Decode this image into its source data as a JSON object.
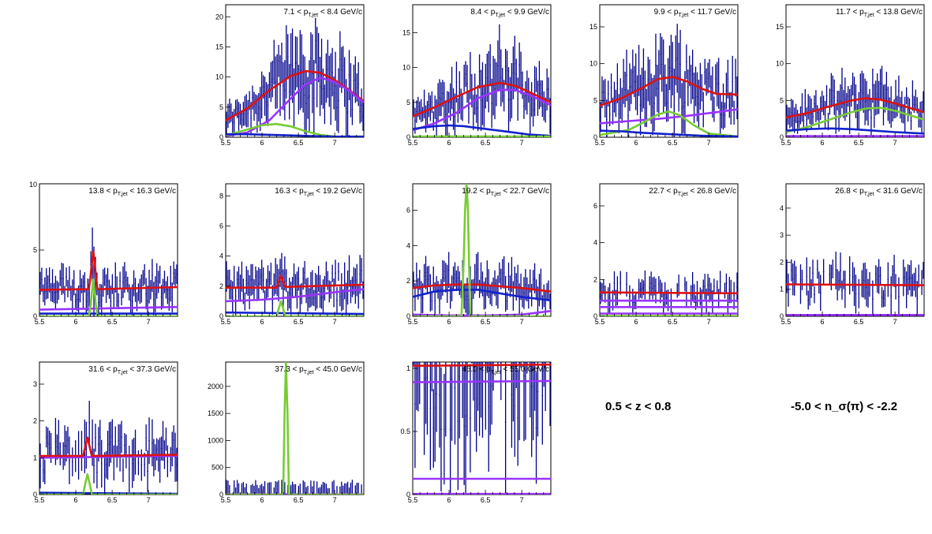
{
  "labels": {
    "z_range": "0.5 < z < 0.8",
    "nsigma_range": "-5.0 < n_σ(π) < -2.2"
  },
  "colors": {
    "data": "#00008b",
    "red": "#dd1111",
    "violet": "#9933ff",
    "green": "#77cc33",
    "blue": "#1122cc"
  },
  "chart_data": [
    {
      "type": "line",
      "title": "7.1 < p_T,jet < 8.4 GeV/c",
      "title_lo": "7.1",
      "title_hi": "8.4",
      "xlim": [
        5.5,
        7.4
      ],
      "ylim": [
        0,
        22
      ],
      "xticks": [
        5.5,
        6,
        6.5,
        7
      ],
      "yticks": [
        0,
        5,
        10,
        15,
        20
      ],
      "series": [
        {
          "color": "red",
          "x": [
            5.5,
            5.8,
            6.1,
            6.4,
            6.6,
            6.8,
            7.0,
            7.2,
            7.4
          ],
          "y": [
            2.8,
            4.8,
            7.8,
            10.2,
            11.0,
            10.7,
            9.5,
            7.8,
            6.0
          ]
        },
        {
          "color": "violet",
          "x": [
            5.5,
            5.8,
            6.1,
            6.4,
            6.6,
            6.8,
            7.0,
            7.2,
            7.4
          ],
          "y": [
            0.2,
            0.8,
            2.8,
            6.5,
            8.8,
            9.9,
            9.2,
            7.7,
            5.8
          ]
        },
        {
          "color": "green",
          "x": [
            5.5,
            5.8,
            6.0,
            6.2,
            6.4,
            6.6,
            6.8,
            7.0,
            7.4
          ],
          "y": [
            0.3,
            1.3,
            2.0,
            2.2,
            1.8,
            1.0,
            0.4,
            0.1,
            0
          ]
        },
        {
          "color": "blue",
          "x": [
            5.5,
            5.8,
            6.1,
            6.4,
            6.7,
            7.0,
            7.4
          ],
          "y": [
            0.5,
            0.5,
            0.4,
            0.3,
            0.2,
            0.1,
            0.1
          ]
        }
      ]
    },
    {
      "type": "line",
      "title": "8.4 < p_T,jet < 9.9 GeV/c",
      "title_lo": "8.4",
      "title_hi": "9.9",
      "xlim": [
        5.5,
        7.4
      ],
      "ylim": [
        0,
        19
      ],
      "xticks": [
        5.5,
        6,
        6.5,
        7
      ],
      "yticks": [
        0,
        5,
        10,
        15
      ],
      "series": [
        {
          "color": "red",
          "x": [
            5.5,
            5.8,
            6.1,
            6.4,
            6.7,
            6.9,
            7.1,
            7.4
          ],
          "y": [
            3.0,
            4.3,
            5.8,
            7.2,
            7.8,
            7.4,
            6.5,
            5.0
          ]
        },
        {
          "color": "violet",
          "x": [
            5.5,
            5.8,
            6.1,
            6.4,
            6.7,
            6.9,
            7.1,
            7.4
          ],
          "y": [
            1.0,
            2.0,
            3.5,
            5.6,
            6.8,
            6.8,
            6.1,
            4.6
          ]
        },
        {
          "color": "blue",
          "x": [
            5.5,
            5.8,
            6.0,
            6.2,
            6.5,
            6.8,
            7.1,
            7.4
          ],
          "y": [
            1.2,
            1.6,
            1.7,
            1.6,
            1.2,
            0.8,
            0.4,
            0.2
          ]
        },
        {
          "color": "green",
          "x": [
            5.5,
            7.4
          ],
          "y": [
            0.1,
            0.1
          ]
        }
      ]
    },
    {
      "type": "line",
      "title": "9.9 < p_T,jet < 11.7 GeV/c",
      "title_lo": "9.9",
      "title_hi": "11.7",
      "xlim": [
        5.5,
        7.4
      ],
      "ylim": [
        0,
        18
      ],
      "xticks": [
        5.5,
        6,
        6.5,
        7
      ],
      "yticks": [
        0,
        5,
        10,
        15
      ],
      "series": [
        {
          "color": "red",
          "x": [
            5.5,
            5.8,
            6.1,
            6.3,
            6.5,
            6.7,
            6.9,
            7.1,
            7.4
          ],
          "y": [
            4.3,
            5.3,
            6.8,
            7.9,
            8.2,
            7.6,
            6.6,
            5.9,
            5.8
          ]
        },
        {
          "color": "violet",
          "x": [
            5.5,
            5.9,
            6.3,
            6.7,
            7.1,
            7.4
          ],
          "y": [
            1.9,
            2.2,
            2.5,
            2.9,
            3.4,
            3.8
          ]
        },
        {
          "color": "green",
          "x": [
            5.5,
            5.9,
            6.1,
            6.3,
            6.45,
            6.6,
            6.8,
            7.0,
            7.4
          ],
          "y": [
            0.3,
            1.0,
            2.0,
            3.1,
            3.5,
            3.0,
            1.6,
            0.5,
            0.1
          ]
        },
        {
          "color": "blue",
          "x": [
            5.5,
            5.8,
            6.1,
            6.5,
            6.9,
            7.4
          ],
          "y": [
            0.9,
            0.8,
            0.6,
            0.4,
            0.2,
            0.1
          ]
        }
      ]
    },
    {
      "type": "line",
      "title": "11.7 < p_T,jet < 13.8 GeV/c",
      "title_lo": "11.7",
      "title_hi": "13.8",
      "xlim": [
        5.5,
        7.4
      ],
      "ylim": [
        0,
        18
      ],
      "xticks": [
        5.5,
        6,
        6.5,
        7
      ],
      "yticks": [
        0,
        5,
        10,
        15
      ],
      "series": [
        {
          "color": "red",
          "x": [
            5.5,
            5.8,
            6.1,
            6.4,
            6.6,
            6.8,
            7.0,
            7.2,
            7.4
          ],
          "y": [
            2.7,
            3.3,
            4.2,
            5.0,
            5.3,
            5.1,
            4.6,
            4.0,
            3.4
          ]
        },
        {
          "color": "green",
          "x": [
            5.5,
            5.8,
            6.1,
            6.4,
            6.6,
            6.8,
            7.0,
            7.2,
            7.4
          ],
          "y": [
            0.7,
            1.4,
            2.4,
            3.4,
            3.9,
            4.0,
            3.6,
            3.0,
            2.4
          ]
        },
        {
          "color": "blue",
          "x": [
            5.5,
            5.8,
            6.1,
            6.4,
            6.7,
            7.0,
            7.4
          ],
          "y": [
            0.9,
            1.1,
            1.2,
            1.1,
            0.9,
            0.7,
            0.5
          ]
        },
        {
          "color": "violet",
          "x": [
            5.5,
            7.4
          ],
          "y": [
            0.15,
            0.15
          ]
        }
      ]
    },
    {
      "type": "line",
      "title": "13.8 < p_T,jet < 16.3 GeV/c",
      "title_lo": "13.8",
      "title_hi": "16.3",
      "xlim": [
        5.5,
        7.4
      ],
      "ylim": [
        0,
        10
      ],
      "xticks": [
        5.5,
        6,
        6.5,
        7
      ],
      "yticks": [
        0,
        5
      ],
      "ytop_label": "10",
      "series": [
        {
          "color": "violet",
          "x": [
            5.5,
            7.4
          ],
          "y": [
            0.5,
            0.7
          ]
        },
        {
          "color": "blue",
          "x": [
            5.5,
            7.4
          ],
          "y": [
            0.2,
            0.2
          ]
        },
        {
          "color": "green",
          "x": [
            5.5,
            6.18,
            6.2,
            6.22,
            6.24,
            6.26,
            6.28,
            6.3,
            7.4
          ],
          "y": [
            0,
            0,
            0.7,
            1.7,
            2.8,
            1.7,
            0.7,
            0,
            0
          ]
        },
        {
          "color": "red",
          "x": [
            5.5,
            6.18,
            6.2,
            6.22,
            6.24,
            6.26,
            6.28,
            6.3,
            7.4
          ],
          "y": [
            2.0,
            2.05,
            2.9,
            4.0,
            4.9,
            4.0,
            2.9,
            2.05,
            2.2
          ]
        }
      ]
    },
    {
      "type": "line",
      "title": "16.3 < p_T,jet < 19.2 GeV/c",
      "title_lo": "16.3",
      "title_hi": "19.2",
      "xlim": [
        5.5,
        7.4
      ],
      "ylim": [
        0,
        8.8
      ],
      "xticks": [
        5.5,
        6,
        6.5,
        7
      ],
      "yticks": [
        0,
        2,
        4,
        6,
        8
      ],
      "series": [
        {
          "color": "blue",
          "x": [
            5.5,
            7.4
          ],
          "y": [
            0.25,
            0.15
          ]
        },
        {
          "color": "violet",
          "x": [
            5.5,
            6.0,
            6.5,
            7.0,
            7.4
          ],
          "y": [
            1.0,
            1.1,
            1.3,
            1.6,
            1.8
          ]
        },
        {
          "color": "green",
          "x": [
            5.5,
            6.2,
            6.23,
            6.26,
            6.29,
            6.32,
            7.4
          ],
          "y": [
            0,
            0,
            0.5,
            1.0,
            0.5,
            0,
            0
          ]
        },
        {
          "color": "red",
          "x": [
            5.5,
            6.2,
            6.23,
            6.26,
            6.29,
            6.32,
            7.4
          ],
          "y": [
            1.9,
            1.9,
            2.3,
            2.7,
            2.3,
            1.95,
            2.1
          ]
        }
      ]
    },
    {
      "type": "line",
      "title": "19.2 < p_T,jet < 22.7 GeV/c",
      "title_lo": "19.2",
      "title_hi": "22.7",
      "xlim": [
        5.5,
        7.4
      ],
      "ylim": [
        0,
        7.5
      ],
      "xticks": [
        5.5,
        6,
        6.5,
        7
      ],
      "yticks": [
        0,
        2,
        4,
        6
      ],
      "series": [
        {
          "color": "violet",
          "x": [
            5.5,
            6.0,
            6.5,
            7.0,
            7.4
          ],
          "y": [
            0.1,
            0.05,
            0.05,
            0.1,
            0.3
          ]
        },
        {
          "color": "blue",
          "x": [
            5.5,
            5.8,
            6.1,
            6.4,
            6.7,
            7.0,
            7.4
          ],
          "y": [
            1.1,
            1.4,
            1.5,
            1.5,
            1.3,
            1.1,
            0.9
          ]
        },
        {
          "color": "red",
          "x": [
            5.5,
            5.8,
            6.1,
            6.4,
            6.7,
            7.0,
            7.4
          ],
          "y": [
            1.6,
            1.75,
            1.8,
            1.8,
            1.7,
            1.6,
            1.4
          ]
        },
        {
          "color": "green",
          "x": [
            5.5,
            6.17,
            6.2,
            6.22,
            6.24,
            6.26,
            6.29,
            7.4
          ],
          "y": [
            0,
            0,
            3.0,
            6.0,
            7.5,
            6.0,
            0,
            0
          ]
        }
      ]
    },
    {
      "type": "line",
      "title": "22.7 < p_T,jet < 26.8 GeV/c",
      "title_lo": "22.7",
      "title_hi": "26.8",
      "xlim": [
        5.5,
        7.4
      ],
      "ylim": [
        0,
        7.2
      ],
      "xticks": [
        5.5,
        6,
        6.5,
        7
      ],
      "yticks": [
        0,
        2,
        4,
        6
      ],
      "series": [
        {
          "color": "violet",
          "x": [
            5.5,
            7.4
          ],
          "y": [
            0.15,
            0.15
          ]
        },
        {
          "color": "violet",
          "x": [
            5.5,
            7.4
          ],
          "y": [
            0.5,
            0.5
          ]
        },
        {
          "color": "violet",
          "x": [
            5.5,
            7.4
          ],
          "y": [
            0.85,
            0.85
          ]
        },
        {
          "color": "red",
          "x": [
            5.5,
            7.4
          ],
          "y": [
            1.3,
            1.25
          ]
        },
        {
          "color": "green",
          "x": [
            5.5,
            7.4
          ],
          "y": [
            0.02,
            0.02
          ]
        }
      ]
    },
    {
      "type": "line",
      "title": "26.8 < p_T,jet < 31.6 GeV/c",
      "title_lo": "26.8",
      "title_hi": "31.6",
      "xlim": [
        5.5,
        7.4
      ],
      "ylim": [
        0,
        4.9
      ],
      "xticks": [
        5.5,
        6,
        6.5,
        7
      ],
      "yticks": [
        0,
        1,
        2,
        3,
        4
      ],
      "series": [
        {
          "color": "red",
          "x": [
            5.5,
            7.4
          ],
          "y": [
            1.18,
            1.15
          ]
        },
        {
          "color": "violet",
          "x": [
            5.5,
            7.4
          ],
          "y": [
            0.05,
            0.05
          ]
        }
      ]
    },
    {
      "type": "line",
      "title": "31.6 < p_T,jet < 37.3 GeV/c",
      "title_lo": "31.6",
      "title_hi": "37.3",
      "xlim": [
        5.5,
        7.4
      ],
      "ylim": [
        0,
        3.6
      ],
      "xticks": [
        5.5,
        6,
        6.5,
        7
      ],
      "yticks": [
        0,
        1,
        2,
        3
      ],
      "series": [
        {
          "color": "blue",
          "x": [
            5.5,
            7.4
          ],
          "y": [
            0.05,
            0.02
          ]
        },
        {
          "color": "violet",
          "x": [
            5.5,
            7.4
          ],
          "y": [
            1.0,
            1.05
          ]
        },
        {
          "color": "green",
          "x": [
            5.5,
            6.1,
            6.13,
            6.16,
            6.19,
            6.22,
            7.4
          ],
          "y": [
            0,
            0,
            0.3,
            0.55,
            0.3,
            0,
            0
          ]
        },
        {
          "color": "red",
          "x": [
            5.5,
            6.1,
            6.13,
            6.16,
            6.19,
            6.22,
            7.4
          ],
          "y": [
            1.05,
            1.05,
            1.3,
            1.55,
            1.3,
            1.05,
            1.08
          ]
        }
      ]
    },
    {
      "type": "line",
      "title": "37.3 < p_T,jet < 45.0 GeV/c",
      "title_lo": "37.3",
      "title_hi": "45.0",
      "xlim": [
        5.5,
        7.4
      ],
      "ylim": [
        0,
        2450
      ],
      "xticks": [
        5.5,
        6,
        6.5,
        7
      ],
      "yticks": [
        0,
        500,
        1000,
        1500,
        2000
      ],
      "series": [
        {
          "color": "violet",
          "x": [
            5.5,
            7.4
          ],
          "y": [
            5,
            5
          ]
        },
        {
          "color": "green",
          "x": [
            5.5,
            6.29,
            6.31,
            6.33,
            6.35,
            6.37,
            7.4
          ],
          "y": [
            0,
            0,
            1500,
            2450,
            1500,
            0,
            0
          ]
        }
      ]
    },
    {
      "type": "line",
      "title": "45.0 < p_T,jet < 55.0 GeV/c",
      "title_lo": "45.0",
      "title_hi": "55.0",
      "xlim": [
        5.5,
        7.4
      ],
      "ylim": [
        0,
        1.05
      ],
      "xticks": [
        5.5,
        6,
        6.5,
        7
      ],
      "yticks": [
        0,
        0.5,
        1
      ],
      "series": [
        {
          "color": "red",
          "x": [
            5.5,
            7.4
          ],
          "y": [
            1.02,
            1.03
          ]
        },
        {
          "color": "violet",
          "x": [
            5.5,
            7.4
          ],
          "y": [
            0.89,
            0.9
          ]
        },
        {
          "color": "violet",
          "x": [
            5.5,
            7.4
          ],
          "y": [
            0.125,
            0.125
          ]
        },
        {
          "color": "violet",
          "x": [
            5.5,
            7.4
          ],
          "y": [
            0.005,
            0.005
          ]
        }
      ]
    }
  ]
}
